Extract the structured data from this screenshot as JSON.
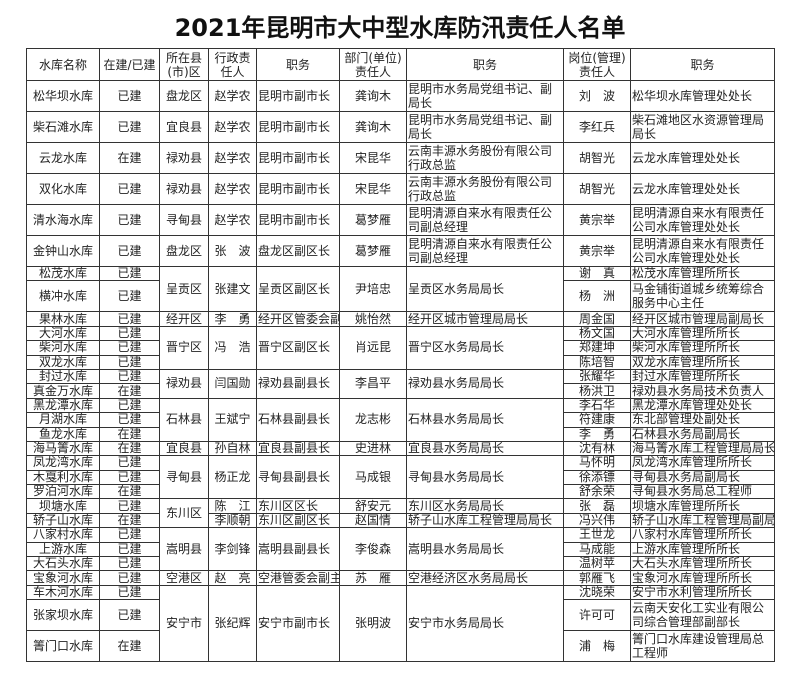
{
  "title": "2021年昆明市大中型水库防汛责任人名单",
  "headers": [
    "水库名称",
    "在建/已建",
    "所在县(市)区",
    "行政责任人",
    "职务",
    "部门(单位)责任人",
    "职务",
    "岗位(管理)责任人",
    "职务"
  ],
  "groups": [
    {
      "county": "盘龙区",
      "admin": "赵学农",
      "admin_title": "昆明市副市长",
      "dept": "龚询木",
      "dept_title": "昆明市水务局党组书记、副局长",
      "rows": [
        {
          "name": "松华坝水库",
          "status": "已建",
          "mgr": "刘　波",
          "mgr_title": "松华坝水库管理处处长",
          "tall": true
        }
      ]
    },
    {
      "county": "宜良县",
      "admin": "赵学农",
      "admin_title": "昆明市副市长",
      "dept": "龚询木",
      "dept_title": "昆明市水务局党组书记、副局长",
      "rows": [
        {
          "name": "柴石滩水库",
          "status": "已建",
          "mgr": "李红兵",
          "mgr_title": "柴石滩地区水资源管理局局长",
          "tall": true
        }
      ]
    },
    {
      "county": "禄劝县",
      "admin": "赵学农",
      "admin_title": "昆明市副市长",
      "dept": "宋昆华",
      "dept_title": "云南丰源水务股份有限公司行政总监",
      "rows": [
        {
          "name": "云龙水库",
          "status": "在建",
          "mgr": "胡智光",
          "mgr_title": "云龙水库管理处处长",
          "tall": true
        }
      ]
    },
    {
      "county": "禄劝县",
      "admin": "赵学农",
      "admin_title": "昆明市副市长",
      "dept": "宋昆华",
      "dept_title": "云南丰源水务股份有限公司行政总监",
      "rows": [
        {
          "name": "双化水库",
          "status": "已建",
          "mgr": "胡智光",
          "mgr_title": "云龙水库管理处处长",
          "tall": true
        }
      ]
    },
    {
      "county": "寻甸县",
      "admin": "赵学农",
      "admin_title": "昆明市副市长",
      "dept": "葛梦雁",
      "dept_title": "昆明清源自来水有限责任公司副总经理",
      "rows": [
        {
          "name": "清水海水库",
          "status": "已建",
          "mgr": "黄宗举",
          "mgr_title": "昆明清源自来水有限责任公司水库管理处处长",
          "tall": true
        }
      ]
    },
    {
      "county": "盘龙区",
      "admin": "张　波",
      "admin_title": "盘龙区副区长",
      "dept": "葛梦雁",
      "dept_title": "昆明清源自来水有限责任公司副总经理",
      "rows": [
        {
          "name": "金钟山水库",
          "status": "已建",
          "mgr": "黄宗举",
          "mgr_title": "昆明清源自来水有限责任公司水库管理处处长",
          "tall": true
        }
      ]
    },
    {
      "county": "呈贡区",
      "admin": "张建文",
      "admin_title": "呈贡区副区长",
      "dept": "尹培忠",
      "dept_title": "呈贡区水务局局长",
      "rows": [
        {
          "name": "松茂水库",
          "status": "已建",
          "mgr": "谢　真",
          "mgr_title": "松茂水库管理所所长"
        },
        {
          "name": "横冲水库",
          "status": "已建",
          "mgr": "杨　洲",
          "mgr_title": "马金铺街道城乡统筹综合服务中心主任",
          "tall": true
        }
      ]
    },
    {
      "county": "经开区",
      "admin": "李　勇",
      "admin_title": "经开区管委会副主任",
      "dept": "姚怡然",
      "dept_title": "经开区城市管理局局长",
      "rows": [
        {
          "name": "果林水库",
          "status": "已建",
          "mgr": "周金国",
          "mgr_title": "经开区城市管理局副局长"
        }
      ]
    },
    {
      "county": "晋宁区",
      "admin": "冯　浩",
      "admin_title": "晋宁区副区长",
      "dept": "肖远昆",
      "dept_title": "晋宁区水务局局长",
      "rows": [
        {
          "name": "大河水库",
          "status": "已建",
          "mgr": "杨文国",
          "mgr_title": "大河水库管理所所长"
        },
        {
          "name": "柴河水库",
          "status": "已建",
          "mgr": "郑建坤",
          "mgr_title": "柴河水库管理所所长"
        },
        {
          "name": "双龙水库",
          "status": "已建",
          "mgr": "陈培智",
          "mgr_title": "双龙水库管理所所长"
        }
      ]
    },
    {
      "county": "禄劝县",
      "admin": "闫国勋",
      "admin_title": "禄劝县副县长",
      "dept": "李昌平",
      "dept_title": "禄劝县水务局局长",
      "rows": [
        {
          "name": "封过水库",
          "status": "已建",
          "mgr": "张耀华",
          "mgr_title": "封过水库管理所所长"
        },
        {
          "name": "真金万水库",
          "status": "在建",
          "mgr": "杨洪卫",
          "mgr_title": "禄劝县水务局技术负责人"
        }
      ]
    },
    {
      "county": "石林县",
      "admin": "王斌宁",
      "admin_title": "石林县副县长",
      "dept": "龙志彬",
      "dept_title": "石林县水务局局长",
      "rows": [
        {
          "name": "黑龙潭水库",
          "status": "已建",
          "mgr": "李石华",
          "mgr_title": "黑龙潭水库管理处处长"
        },
        {
          "name": "月湖水库",
          "status": "已建",
          "mgr": "符建康",
          "mgr_title": "东北部管理处副处长"
        },
        {
          "name": "鱼龙水库",
          "status": "在建",
          "mgr": "李　勇",
          "mgr_title": "石林县水务局副局长"
        }
      ]
    },
    {
      "county": "宜良县",
      "admin": "孙自林",
      "admin_title": "宜良县副县长",
      "dept": "史进林",
      "dept_title": "宜良县水务局局长",
      "rows": [
        {
          "name": "海马箐水库",
          "status": "在建",
          "mgr": "沈有林",
          "mgr_title": "海马箐水库工程管理局局长"
        }
      ]
    },
    {
      "county": "寻甸县",
      "admin": "杨正龙",
      "admin_title": "寻甸县副县长",
      "dept": "马成银",
      "dept_title": "寻甸县水务局局长",
      "rows": [
        {
          "name": "凤龙湾水库",
          "status": "已建",
          "mgr": "马怀明",
          "mgr_title": "凤龙湾水库管理所所长"
        },
        {
          "name": "木戛利水库",
          "status": "已建",
          "mgr": "徐添镖",
          "mgr_title": "寻甸县水务局副局长"
        },
        {
          "name": "罗泊河水库",
          "status": "在建",
          "mgr": "舒余荣",
          "mgr_title": "寻甸县水务局总工程师"
        }
      ]
    },
    {
      "county": "东川区",
      "rows": [
        {
          "name": "坝塘水库",
          "status": "已建",
          "admin": "陈　江",
          "admin_title": "东川区区长",
          "dept": "舒安元",
          "dept_title": "东川区水务局局长",
          "mgr": "张　磊",
          "mgr_title": "坝塘水库管理所所长"
        },
        {
          "name": "轿子山水库",
          "status": "在建",
          "admin": "李顺朝",
          "admin_title": "东川区副区长",
          "dept": "赵国情",
          "dept_title": "轿子山水库工程管理局局长",
          "mgr": "冯兴伟",
          "mgr_title": "轿子山水库工程管理局副局长"
        }
      ]
    },
    {
      "county": "嵩明县",
      "admin": "李剑锋",
      "admin_title": "嵩明县副县长",
      "dept": "李俊森",
      "dept_title": "嵩明县水务局局长",
      "rows": [
        {
          "name": "八家村水库",
          "status": "已建",
          "mgr": "王世龙",
          "mgr_title": "八家村水库管理所所长"
        },
        {
          "name": "上游水库",
          "status": "已建",
          "mgr": "马成能",
          "mgr_title": "上游水库管理所所长"
        },
        {
          "name": "大石头水库",
          "status": "已建",
          "mgr": "温树苹",
          "mgr_title": "大石头水库管理所所长"
        }
      ]
    },
    {
      "county": "空港区",
      "admin": "赵　亮",
      "admin_title": "空港管委会副主任",
      "dept": "苏　雁",
      "dept_title": "空港经济区水务局局长",
      "rows": [
        {
          "name": "宝象河水库",
          "status": "已建",
          "mgr": "郭雁飞",
          "mgr_title": "宝象河水库管理所所长"
        }
      ]
    },
    {
      "county": "安宁市",
      "admin": "张纪辉",
      "admin_title": "安宁市副市长",
      "dept": "张明波",
      "dept_title": "安宁市水务局局长",
      "rows": [
        {
          "name": "车木河水库",
          "status": "已建",
          "mgr": "沈晓荣",
          "mgr_title": "安宁市水利管理所所长"
        },
        {
          "name": "张家坝水库",
          "status": "已建",
          "mgr": "许可可",
          "mgr_title": "云南天安化工实业有限公司综合管理部副部长",
          "tall": true
        },
        {
          "name": "箐门口水库",
          "status": "在建",
          "mgr": "浦　梅",
          "mgr_title": "箐门口水库建设管理局总工程师",
          "tall": true
        }
      ]
    }
  ]
}
